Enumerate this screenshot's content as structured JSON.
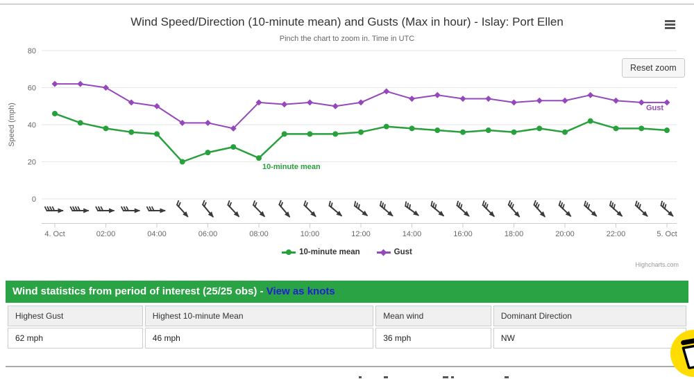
{
  "header": {
    "title": "Wind Speed/Direction (10-minute mean) and Gusts (Max in hour) - Islay: Port Ellen",
    "subtitle": "Pinch the chart to zoom in. Time in UTC",
    "reset_zoom_label": "Reset zoom",
    "credits": "Highcharts.com"
  },
  "chart_data": {
    "type": "line",
    "title": "Wind Speed/Direction (10-minute mean) and Gusts (Max in hour) - Islay: Port Ellen",
    "subtitle": "Pinch the chart to zoom in. Time in UTC",
    "ylabel": "Speed (mph)",
    "ylim": [
      0,
      80
    ],
    "yticks": [
      0,
      20,
      40,
      60,
      80
    ],
    "xticklabels": [
      "4. Oct",
      "02:00",
      "04:00",
      "06:00",
      "08:00",
      "10:00",
      "12:00",
      "14:00",
      "16:00",
      "18:00",
      "20:00",
      "22:00",
      "5. Oct"
    ],
    "grid": true,
    "legend_position": "bottom",
    "series": [
      {
        "name": "10-minute mean",
        "color": "#28a03c",
        "marker": "circle",
        "values": [
          46,
          41,
          38,
          36,
          35,
          20,
          25,
          28,
          22,
          35,
          35,
          35,
          36,
          39,
          38,
          37,
          36,
          37,
          36,
          38,
          36,
          42,
          38,
          38,
          37
        ]
      },
      {
        "name": "Gust",
        "color": "#9448bc",
        "marker": "diamond",
        "values": [
          62,
          62,
          60,
          52,
          50,
          41,
          41,
          38,
          52,
          51,
          52,
          50,
          52,
          58,
          54,
          56,
          54,
          54,
          52,
          53,
          53,
          56,
          53,
          52,
          52
        ]
      }
    ],
    "wind_barbs": [
      {
        "r": 0,
        "f": 4
      },
      {
        "r": 0,
        "f": 4
      },
      {
        "r": 0,
        "f": 3
      },
      {
        "r": 0,
        "f": 3
      },
      {
        "r": 0,
        "f": 3
      },
      {
        "r": 48,
        "f": 2
      },
      {
        "r": 50,
        "f": 2
      },
      {
        "r": 47,
        "f": 2
      },
      {
        "r": 46,
        "f": 2
      },
      {
        "r": 50,
        "f": 2
      },
      {
        "r": 45,
        "f": 2
      },
      {
        "r": 40,
        "f": 2
      },
      {
        "r": 38,
        "f": 3
      },
      {
        "r": 40,
        "f": 3
      },
      {
        "r": 36,
        "f": 3
      },
      {
        "r": 40,
        "f": 3
      },
      {
        "r": 42,
        "f": 3
      },
      {
        "r": 45,
        "f": 3
      },
      {
        "r": 48,
        "f": 3
      },
      {
        "r": 48,
        "f": 3
      },
      {
        "r": 44,
        "f": 3
      },
      {
        "r": 42,
        "f": 3
      },
      {
        "r": 42,
        "f": 3
      },
      {
        "r": 43,
        "f": 3
      },
      {
        "r": 42,
        "f": 3
      }
    ]
  },
  "legend": {
    "mean_label": "10-minute mean",
    "gust_label": "Gust"
  },
  "stats": {
    "banner_text": "Wind statistics from period of interest (25/25 obs) -",
    "link_label": "View as knots",
    "banner_color": "#2aa344",
    "link_color": "#1f1fd3",
    "columns": [
      {
        "label": "Highest Gust",
        "value": "62 mph"
      },
      {
        "label": "Highest 10-minute Mean",
        "value": "46 mph"
      },
      {
        "label": "Mean wind",
        "value": "36 mph"
      },
      {
        "label": "Dominant Direction",
        "value": "NW"
      }
    ]
  }
}
